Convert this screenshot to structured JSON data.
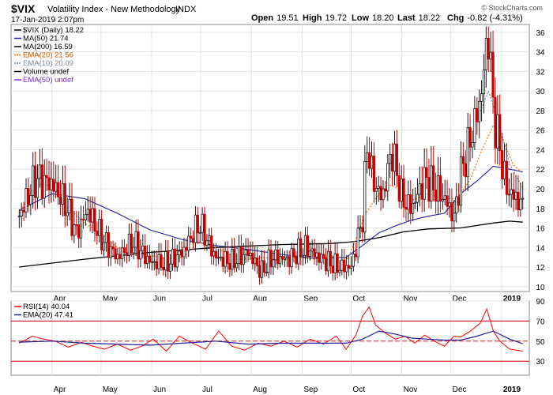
{
  "header": {
    "symbol": "$VIX",
    "description": "Volatility Index - New Methodology",
    "exchange": "INDX",
    "date": "17-Jan-2019 2:07pm",
    "copyright": "© StockCharts.com",
    "quote": [
      {
        "label": "Open",
        "value": "19.51"
      },
      {
        "label": "High",
        "value": "19.72"
      },
      {
        "label": "Low",
        "value": "18.20"
      },
      {
        "label": "Last",
        "value": "18.22"
      },
      {
        "label": "Chg",
        "value": "-0.82 (-4.31%)"
      }
    ]
  },
  "colors": {
    "price_up": "#1a1a1a",
    "price_down": "#cc0000",
    "ma50": "#1f1f9e",
    "ma200": "#000000",
    "ema20": "#ff6600",
    "ema10": "#6a8caf",
    "volume": "#000000",
    "ema50": "#7a2ccc",
    "rsi": "#ff0000",
    "rsi_ema": "#1f1f9e",
    "band": "#cc0000"
  },
  "chart_data": [
    {
      "type": "candlestick",
      "legend_position": "top-left",
      "grid": true,
      "ylim": [
        9.5,
        36.8
      ],
      "yticks": [
        10,
        12,
        14,
        16,
        18,
        20,
        22,
        24,
        26,
        28,
        30,
        32,
        34,
        36
      ],
      "x_ticks": [
        {
          "label": "Apr",
          "day": 20
        },
        {
          "label": "May",
          "day": 50
        },
        {
          "label": "Jun",
          "day": 81
        },
        {
          "label": "Jul",
          "day": 111
        },
        {
          "label": "Aug",
          "day": 142
        },
        {
          "label": "Sep",
          "day": 173
        },
        {
          "label": "Oct",
          "day": 203
        },
        {
          "label": "Nov",
          "day": 234
        },
        {
          "label": "Dec",
          "day": 264
        },
        {
          "label": "2019",
          "day": 295
        }
      ],
      "x_range": [
        -5,
        312
      ],
      "series": [
        {
          "name": "$VIX (Daily) 18.22",
          "key": "price",
          "style": "candles",
          "x": [
            0,
            10,
            20,
            28,
            35,
            42,
            50,
            60,
            70,
            80,
            90,
            100,
            110,
            120,
            130,
            140,
            148,
            155,
            165,
            175,
            185,
            195,
            203,
            210,
            213,
            216,
            222,
            228,
            234,
            240,
            248,
            255,
            262,
            266,
            270,
            276,
            282,
            287,
            290,
            293,
            298,
            304,
            308
          ],
          "values": [
            17.2,
            21.0,
            20.5,
            18.5,
            15.5,
            17.8,
            15.0,
            13.0,
            14.5,
            12.5,
            12.3,
            13.5,
            16.5,
            13.0,
            12.5,
            13.5,
            11.5,
            13.0,
            12.8,
            14.0,
            12.8,
            12.0,
            12.0,
            17.0,
            25.0,
            21.0,
            19.0,
            24.0,
            19.0,
            18.0,
            21.0,
            20.0,
            18.5,
            17.0,
            21.5,
            25.0,
            29.0,
            36.0,
            28.0,
            25.0,
            20.0,
            19.0,
            18.22
          ]
        },
        {
          "name": "MA(50) 21.74",
          "key": "ma50",
          "x": [
            0,
            20,
            40,
            60,
            80,
            100,
            120,
            140,
            160,
            180,
            200,
            210,
            220,
            230,
            240,
            250,
            260,
            270,
            280,
            290,
            300,
            308
          ],
          "values": [
            17.8,
            19.5,
            19.0,
            17.5,
            15.8,
            14.8,
            14.2,
            13.8,
            13.3,
            12.9,
            13.0,
            14.2,
            15.5,
            16.2,
            16.8,
            17.2,
            17.5,
            19.5,
            20.8,
            22.3,
            22.0,
            21.74
          ]
        },
        {
          "name": "MA(200) 16.59",
          "key": "ma200",
          "x": [
            0,
            40,
            80,
            120,
            160,
            190,
            205,
            220,
            235,
            250,
            270,
            290,
            300,
            308
          ],
          "values": [
            12.0,
            12.8,
            13.5,
            14.0,
            14.3,
            14.4,
            14.6,
            15.0,
            15.6,
            15.9,
            16.0,
            16.5,
            16.7,
            16.59
          ]
        },
        {
          "name": "EMA(20) 21.56",
          "key": "ema20",
          "x": [
            0,
            10,
            20,
            30,
            40,
            50,
            60,
            70,
            80,
            90,
            100,
            110,
            120,
            130,
            140,
            150,
            160,
            170,
            180,
            190,
            200,
            205,
            212,
            218,
            225,
            232,
            240,
            250,
            260,
            268,
            276,
            283,
            290,
            296,
            302,
            308
          ],
          "values": [
            17.5,
            20.5,
            20.3,
            18.0,
            16.5,
            15.5,
            14.0,
            13.5,
            13.2,
            12.8,
            13.0,
            14.5,
            14.0,
            13.2,
            12.8,
            13.0,
            12.6,
            13.0,
            12.8,
            13.1,
            12.5,
            14.5,
            17.5,
            19.0,
            20.5,
            20.0,
            18.8,
            19.5,
            19.0,
            19.0,
            21.0,
            24.0,
            26.5,
            25.0,
            22.5,
            21.56
          ]
        },
        {
          "name": "EMA(10) 20.09",
          "key": "ema10",
          "x": [
            280,
            287,
            293,
            300,
            308
          ],
          "values": [
            27.0,
            30.0,
            27.0,
            22.5,
            20.09
          ]
        },
        {
          "name": "Volume undef",
          "key": "volume",
          "values": []
        },
        {
          "name": "EMA(50) undef",
          "key": "ema50",
          "values": []
        }
      ]
    },
    {
      "type": "line",
      "legend_position": "top-left",
      "grid": true,
      "ylim": [
        16,
        90
      ],
      "yticks": [
        30,
        50,
        70,
        90
      ],
      "bands": [
        30,
        70
      ],
      "midline": 50,
      "x_ticks": [
        {
          "label": "Apr",
          "day": 20
        },
        {
          "label": "May",
          "day": 50
        },
        {
          "label": "Jun",
          "day": 81
        },
        {
          "label": "Jul",
          "day": 111
        },
        {
          "label": "Aug",
          "day": 142
        },
        {
          "label": "Sep",
          "day": 173
        },
        {
          "label": "Oct",
          "day": 203
        },
        {
          "label": "Nov",
          "day": 234
        },
        {
          "label": "Dec",
          "day": 264
        },
        {
          "label": "2019",
          "day": 295
        }
      ],
      "x_range": [
        -5,
        312
      ],
      "series": [
        {
          "name": "RSI(14) 40.04",
          "key": "rsi",
          "x": [
            0,
            8,
            15,
            22,
            30,
            38,
            45,
            52,
            60,
            68,
            75,
            82,
            90,
            98,
            106,
            114,
            122,
            130,
            138,
            146,
            154,
            162,
            170,
            178,
            186,
            194,
            200,
            206,
            210,
            214,
            218,
            224,
            230,
            236,
            242,
            248,
            254,
            260,
            266,
            270,
            276,
            282,
            286,
            290,
            294,
            300,
            304,
            308
          ],
          "values": [
            48,
            55,
            52,
            50,
            44,
            49,
            45,
            42,
            47,
            41,
            45,
            52,
            40,
            55,
            48,
            42,
            60,
            45,
            41,
            48,
            45,
            50,
            44,
            52,
            47,
            55,
            42,
            56,
            75,
            84,
            66,
            58,
            52,
            55,
            48,
            56,
            50,
            45,
            55,
            54,
            60,
            68,
            82,
            60,
            50,
            42,
            41,
            40.04
          ]
        },
        {
          "name": "EMA(20) 47.41",
          "key": "rsi_ema",
          "x": [
            0,
            20,
            40,
            60,
            80,
            100,
            120,
            140,
            160,
            180,
            200,
            210,
            220,
            230,
            240,
            250,
            260,
            270,
            280,
            290,
            300,
            308
          ],
          "values": [
            49,
            50,
            48,
            47,
            46,
            48,
            50,
            47,
            48,
            48,
            48,
            52,
            60,
            57,
            53,
            52,
            51,
            51,
            55,
            60,
            52,
            47.41
          ]
        }
      ]
    }
  ]
}
